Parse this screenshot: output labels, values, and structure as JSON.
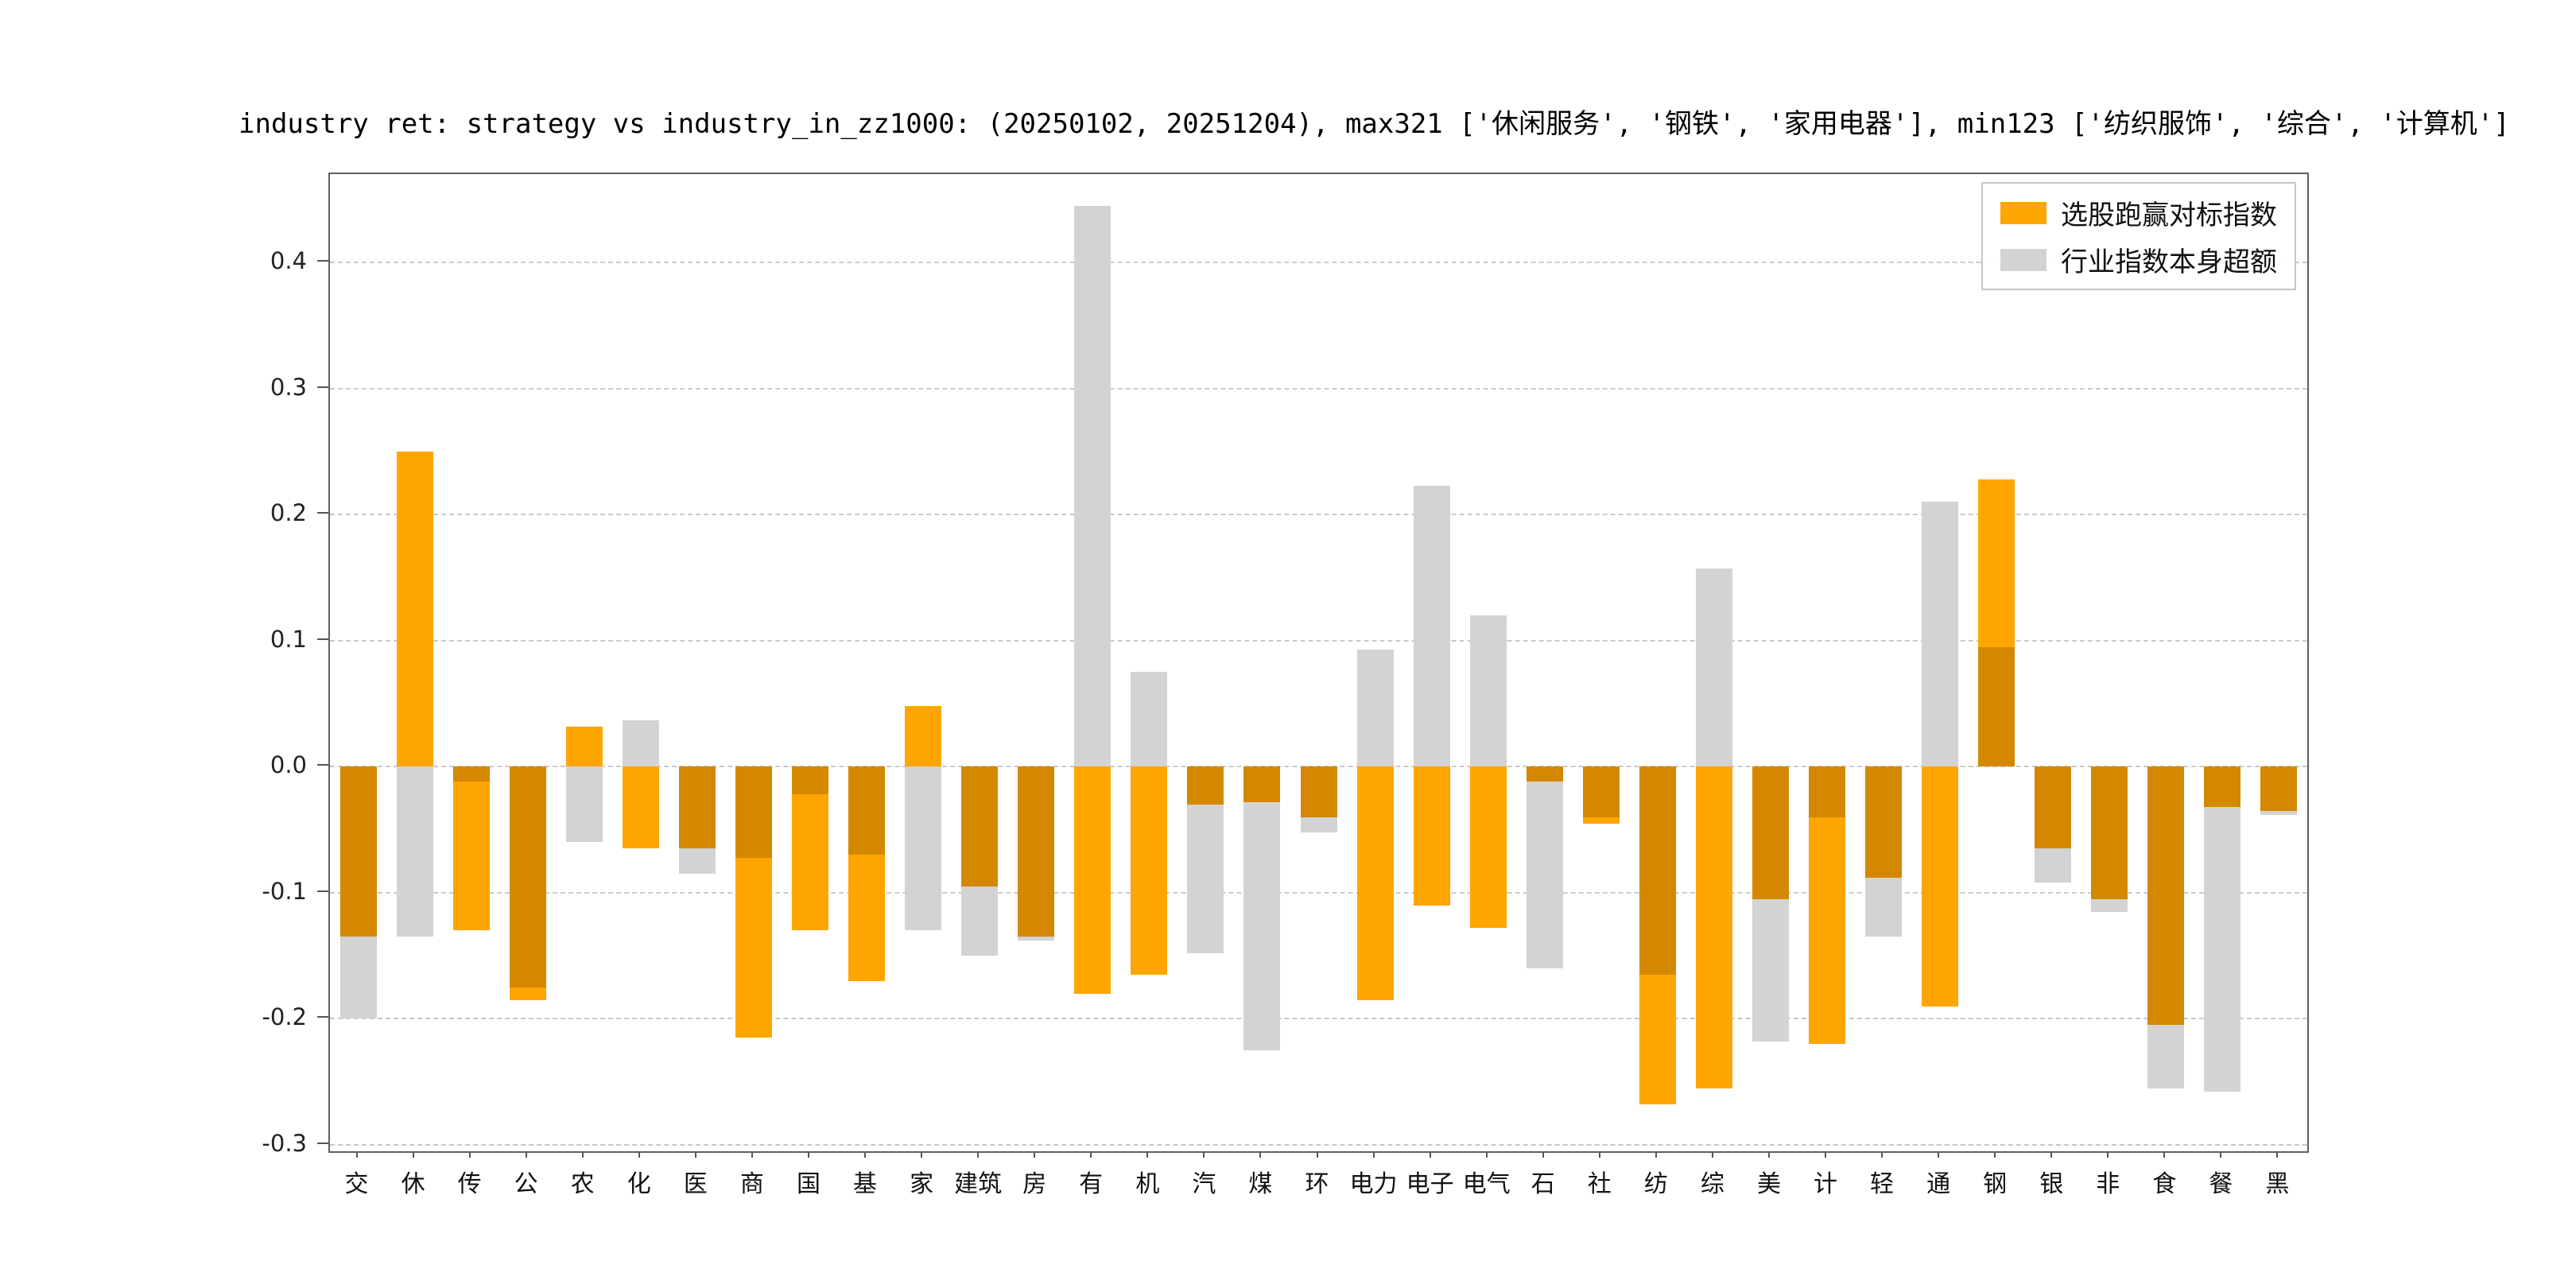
{
  "title": "industry ret: strategy vs industry_in_zz1000: (20250102, 20251204), max321 ['休闲服务', '钢铁', '家用电器'], min123 ['纺织服饰', '综合', '计算机']",
  "legend": [
    {
      "label": "选股跑赢对标指数",
      "color": "#FFA500"
    },
    {
      "label": "行业指数本身超额",
      "color": "#D3D3D3"
    }
  ],
  "chart_data": {
    "type": "bar",
    "title": "industry ret: strategy vs industry_in_zz1000: (20250102, 20251204), max321 ['休闲服务', '钢铁', '家用电器'], min123 ['纺织服饰', '综合', '计算机']",
    "xlabel": "",
    "ylabel": "",
    "categories": [
      "交",
      "休",
      "传",
      "公",
      "农",
      "化",
      "医",
      "商",
      "国",
      "基",
      "家",
      "建筑",
      "房",
      "有",
      "机",
      "汽",
      "煤",
      "环",
      "电力",
      "电子",
      "电气",
      "石",
      "社",
      "纺",
      "综",
      "美",
      "计",
      "轻",
      "通",
      "钢",
      "银",
      "非",
      "食",
      "餐",
      "黑"
    ],
    "series": [
      {
        "name": "选股跑赢对标指数",
        "color": "#FFA500",
        "values": [
          -0.135,
          0.25,
          -0.13,
          -0.185,
          0.032,
          -0.065,
          -0.065,
          -0.215,
          -0.13,
          -0.17,
          0.048,
          -0.095,
          -0.135,
          -0.18,
          -0.165,
          -0.03,
          -0.028,
          -0.04,
          -0.185,
          -0.11,
          -0.128,
          -0.012,
          -0.045,
          -0.268,
          -0.255,
          -0.105,
          -0.22,
          -0.088,
          -0.19,
          0.228,
          -0.065,
          -0.105,
          -0.205,
          -0.032,
          -0.035
        ]
      },
      {
        "name": "行业指数本身超额",
        "color": "#D3D3D3",
        "values": [
          -0.2,
          -0.135,
          -0.012,
          -0.175,
          -0.06,
          0.037,
          -0.085,
          -0.072,
          -0.022,
          -0.07,
          -0.13,
          -0.15,
          -0.138,
          0.445,
          0.075,
          -0.148,
          -0.225,
          -0.052,
          0.093,
          0.223,
          0.12,
          -0.16,
          -0.04,
          -0.165,
          0.157,
          -0.218,
          -0.04,
          -0.135,
          0.21,
          0.095,
          -0.092,
          -0.115,
          -0.255,
          -0.258,
          -0.038
        ]
      }
    ],
    "overlap_color": "#D38800",
    "ylim": [
      -0.305,
      0.47
    ],
    "yticks": [
      -0.3,
      -0.2,
      -0.1,
      0.0,
      0.1,
      0.2,
      0.3,
      0.4
    ],
    "grid": "dashed-horizontal",
    "legend_position": "upper-right"
  }
}
